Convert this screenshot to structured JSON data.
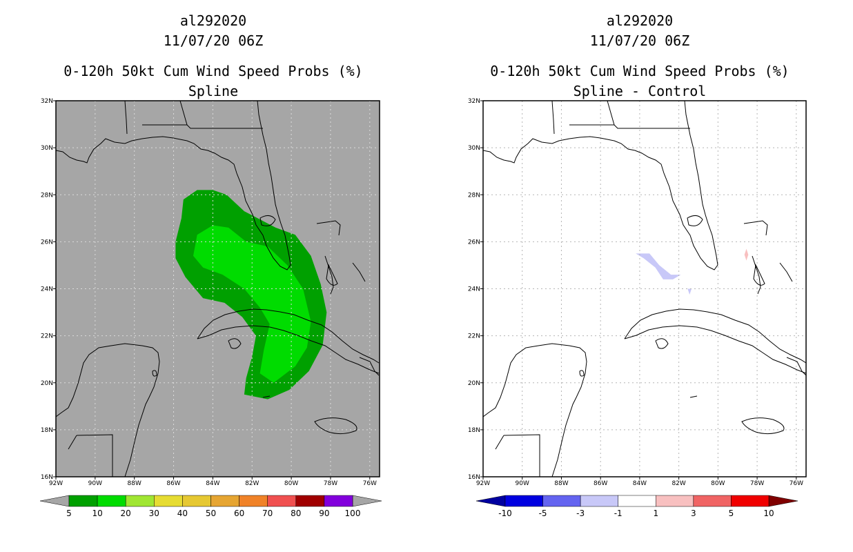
{
  "chart_data": [
    {
      "type": "map",
      "title_lines": [
        "al292020",
        "11/07/20 06Z",
        "0-120h 50kt Cum Wind Speed Probs (%)",
        "Spline"
      ],
      "lon_ticks": [
        "92W",
        "90W",
        "88W",
        "86W",
        "84W",
        "82W",
        "80W",
        "78W",
        "76W"
      ],
      "lat_ticks": [
        "16N",
        "18N",
        "20N",
        "22N",
        "24N",
        "26N",
        "28N",
        "30N",
        "32N"
      ],
      "lon_range": [
        -92,
        -75.5
      ],
      "lat_range": [
        16,
        32
      ],
      "background_color": "#a6a6a6",
      "probability_regions": [
        {
          "label": "5-10%",
          "color": "#00a000"
        },
        {
          "label": "10-20%",
          "color": "#00dc00"
        }
      ],
      "colorbar": {
        "labels": [
          "5",
          "10",
          "20",
          "30",
          "40",
          "50",
          "60",
          "70",
          "80",
          "90",
          "100"
        ],
        "colors": [
          "#00a000",
          "#00dc00",
          "#a0e632",
          "#e6dc32",
          "#e6c832",
          "#e6a532",
          "#f08228",
          "#f05050",
          "#a00000",
          "#8200dc"
        ],
        "low_arrow_color": "#a6a6a6",
        "high_arrow_color": "#a6a6a6"
      }
    },
    {
      "type": "map",
      "title_lines": [
        "al292020",
        "11/07/20 06Z",
        "0-120h 50kt Cum Wind Speed Probs (%)",
        "Spline - Control"
      ],
      "lon_ticks": [
        "92W",
        "90W",
        "88W",
        "86W",
        "84W",
        "82W",
        "80W",
        "78W",
        "76W"
      ],
      "lat_ticks": [
        "16N",
        "18N",
        "20N",
        "22N",
        "24N",
        "26N",
        "28N",
        "30N",
        "32N"
      ],
      "lon_range": [
        -92,
        -75.5
      ],
      "lat_range": [
        16,
        32
      ],
      "background_color": "#ffffff",
      "difference_regions": [
        {
          "label": "-3 to -1",
          "color": "#c8c8f8"
        },
        {
          "label": "1 to 3",
          "color": "#f8c0c0"
        }
      ],
      "colorbar": {
        "labels": [
          "-10",
          "-5",
          "-3",
          "-1",
          "1",
          "3",
          "5",
          "10"
        ],
        "colors": [
          "#0000e0",
          "#6464f0",
          "#c8c8f8",
          "#ffffff",
          "#f8c0c0",
          "#f06464",
          "#f00000"
        ],
        "low_arrow_color": "#0000a0",
        "high_arrow_color": "#800000"
      }
    }
  ]
}
